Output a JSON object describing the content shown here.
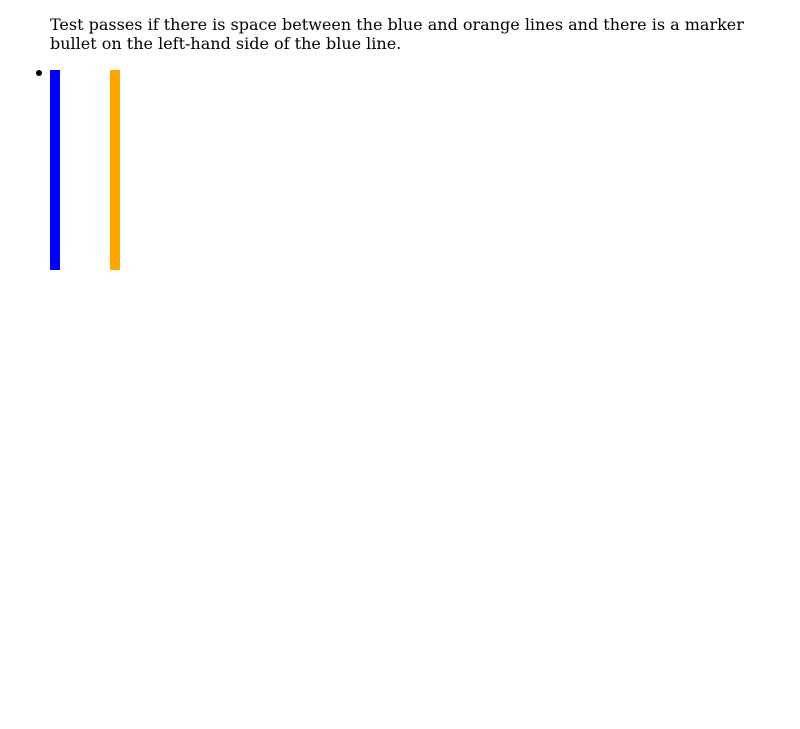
{
  "instructions": {
    "text": "Test passes if there is space between the blue and orange lines and there is a marker bullet on the left-hand side of the blue line."
  },
  "marker": {
    "glyph": "bullet",
    "color": "#000000"
  },
  "lines": {
    "blue": {
      "color": "#0000ff"
    },
    "orange": {
      "color": "#ffa500"
    }
  }
}
